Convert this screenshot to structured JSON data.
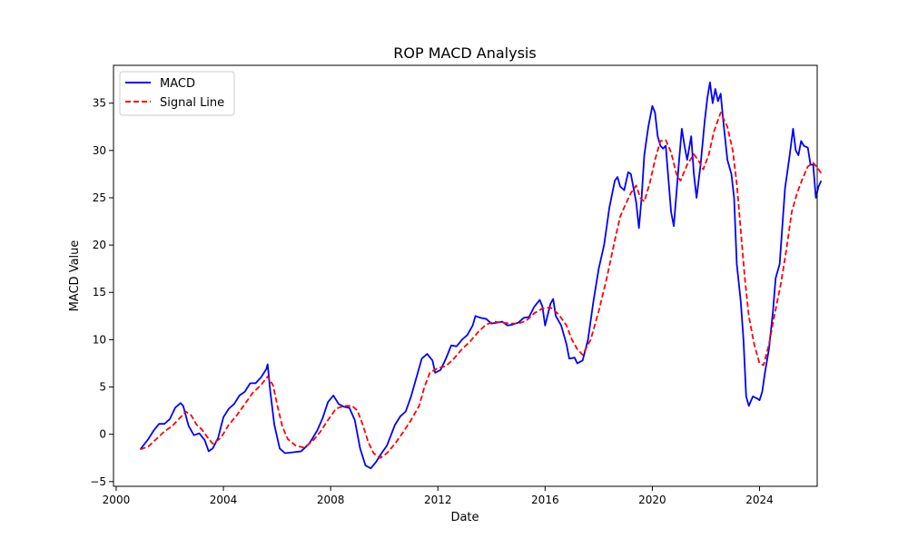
{
  "chart_data": {
    "type": "line",
    "title": "ROP MACD Analysis",
    "xlabel": "Date",
    "ylabel": "MACD Value",
    "xlim": [
      1999.9,
      2026.15
    ],
    "ylim": [
      -5.5,
      39.0
    ],
    "xticks": [
      2000,
      2004,
      2008,
      2012,
      2016,
      2020,
      2024
    ],
    "xtick_labels": [
      "2000",
      "2004",
      "2008",
      "2012",
      "2016",
      "2020",
      "2024"
    ],
    "yticks": [
      -5,
      0,
      5,
      10,
      15,
      20,
      25,
      30,
      35
    ],
    "ytick_labels": [
      "−5",
      "0",
      "5",
      "10",
      "15",
      "20",
      "25",
      "30",
      "35"
    ],
    "grid": false,
    "legend_position": "top-left",
    "series": [
      {
        "name": "MACD",
        "color": "#0000ff",
        "style": "solid",
        "points": [
          [
            2000.9,
            -1.6
          ],
          [
            2001.2,
            -0.5
          ],
          [
            2001.4,
            0.4
          ],
          [
            2001.6,
            1.1
          ],
          [
            2001.8,
            1.1
          ],
          [
            2002.0,
            1.6
          ],
          [
            2002.2,
            2.8
          ],
          [
            2002.4,
            3.3
          ],
          [
            2002.5,
            3.0
          ],
          [
            2002.7,
            0.9
          ],
          [
            2002.9,
            -0.1
          ],
          [
            2003.1,
            0.1
          ],
          [
            2003.3,
            -0.6
          ],
          [
            2003.45,
            -1.8
          ],
          [
            2003.6,
            -1.5
          ],
          [
            2003.8,
            -0.4
          ],
          [
            2004.0,
            1.8
          ],
          [
            2004.2,
            2.7
          ],
          [
            2004.4,
            3.2
          ],
          [
            2004.6,
            4.1
          ],
          [
            2004.8,
            4.5
          ],
          [
            2005.0,
            5.4
          ],
          [
            2005.2,
            5.4
          ],
          [
            2005.4,
            6.0
          ],
          [
            2005.6,
            6.9
          ],
          [
            2005.65,
            7.4
          ],
          [
            2005.75,
            4.5
          ],
          [
            2005.9,
            1.0
          ],
          [
            2006.1,
            -1.5
          ],
          [
            2006.3,
            -2.0
          ],
          [
            2006.6,
            -1.9
          ],
          [
            2006.9,
            -1.8
          ],
          [
            2007.2,
            -1.0
          ],
          [
            2007.5,
            0.4
          ],
          [
            2007.7,
            1.7
          ],
          [
            2007.9,
            3.4
          ],
          [
            2008.1,
            4.1
          ],
          [
            2008.3,
            3.2
          ],
          [
            2008.5,
            2.9
          ],
          [
            2008.7,
            2.8
          ],
          [
            2008.9,
            1.5
          ],
          [
            2009.1,
            -1.5
          ],
          [
            2009.3,
            -3.3
          ],
          [
            2009.5,
            -3.6
          ],
          [
            2009.7,
            -2.9
          ],
          [
            2009.9,
            -2.0
          ],
          [
            2010.1,
            -1.2
          ],
          [
            2010.4,
            1.0
          ],
          [
            2010.6,
            1.9
          ],
          [
            2010.8,
            2.4
          ],
          [
            2011.0,
            4.0
          ],
          [
            2011.2,
            6.0
          ],
          [
            2011.4,
            8.0
          ],
          [
            2011.6,
            8.5
          ],
          [
            2011.8,
            7.8
          ],
          [
            2011.9,
            6.5
          ],
          [
            2012.1,
            6.8
          ],
          [
            2012.3,
            8.0
          ],
          [
            2012.5,
            9.4
          ],
          [
            2012.7,
            9.3
          ],
          [
            2012.9,
            10.0
          ],
          [
            2013.1,
            10.5
          ],
          [
            2013.3,
            11.5
          ],
          [
            2013.4,
            12.5
          ],
          [
            2013.6,
            12.3
          ],
          [
            2013.8,
            12.2
          ],
          [
            2014.0,
            11.7
          ],
          [
            2014.2,
            11.8
          ],
          [
            2014.4,
            11.9
          ],
          [
            2014.6,
            11.5
          ],
          [
            2014.8,
            11.6
          ],
          [
            2015.0,
            11.8
          ],
          [
            2015.2,
            12.3
          ],
          [
            2015.4,
            12.4
          ],
          [
            2015.6,
            13.5
          ],
          [
            2015.8,
            14.2
          ],
          [
            2015.9,
            13.5
          ],
          [
            2016.0,
            11.5
          ],
          [
            2016.2,
            13.8
          ],
          [
            2016.3,
            14.3
          ],
          [
            2016.4,
            12.5
          ],
          [
            2016.6,
            11.5
          ],
          [
            2016.8,
            9.5
          ],
          [
            2016.9,
            8.0
          ],
          [
            2017.1,
            8.1
          ],
          [
            2017.2,
            7.5
          ],
          [
            2017.4,
            7.8
          ],
          [
            2017.6,
            10.0
          ],
          [
            2017.8,
            14.0
          ],
          [
            2018.0,
            17.5
          ],
          [
            2018.2,
            20.0
          ],
          [
            2018.4,
            24.0
          ],
          [
            2018.6,
            26.8
          ],
          [
            2018.7,
            27.2
          ],
          [
            2018.8,
            26.2
          ],
          [
            2018.95,
            25.8
          ],
          [
            2019.1,
            27.7
          ],
          [
            2019.2,
            27.5
          ],
          [
            2019.4,
            24.5
          ],
          [
            2019.5,
            21.8
          ],
          [
            2019.6,
            25.0
          ],
          [
            2019.7,
            29.5
          ],
          [
            2019.85,
            32.5
          ],
          [
            2020.0,
            34.7
          ],
          [
            2020.1,
            34.0
          ],
          [
            2020.2,
            31.5
          ],
          [
            2020.3,
            30.5
          ],
          [
            2020.4,
            30.2
          ],
          [
            2020.5,
            30.5
          ],
          [
            2020.6,
            27.0
          ],
          [
            2020.7,
            23.5
          ],
          [
            2020.8,
            22.0
          ],
          [
            2020.9,
            25.5
          ],
          [
            2021.0,
            29.0
          ],
          [
            2021.1,
            32.3
          ],
          [
            2021.2,
            30.5
          ],
          [
            2021.3,
            29.0
          ],
          [
            2021.45,
            31.5
          ],
          [
            2021.55,
            27.5
          ],
          [
            2021.65,
            25.0
          ],
          [
            2021.8,
            28.5
          ],
          [
            2021.95,
            33.0
          ],
          [
            2022.05,
            35.5
          ],
          [
            2022.15,
            37.2
          ],
          [
            2022.25,
            35.0
          ],
          [
            2022.35,
            36.5
          ],
          [
            2022.45,
            35.2
          ],
          [
            2022.55,
            36.0
          ],
          [
            2022.65,
            33.0
          ],
          [
            2022.8,
            29.0
          ],
          [
            2022.95,
            27.5
          ],
          [
            2023.05,
            25.0
          ],
          [
            2023.15,
            18.0
          ],
          [
            2023.3,
            14.0
          ],
          [
            2023.4,
            10.0
          ],
          [
            2023.5,
            4.0
          ],
          [
            2023.6,
            3.0
          ],
          [
            2023.75,
            4.0
          ],
          [
            2023.9,
            3.8
          ],
          [
            2024.0,
            3.6
          ],
          [
            2024.1,
            4.5
          ],
          [
            2024.2,
            6.5
          ],
          [
            2024.35,
            9.0
          ],
          [
            2024.5,
            13.0
          ],
          [
            2024.6,
            16.5
          ],
          [
            2024.75,
            18.0
          ],
          [
            2024.85,
            22.0
          ],
          [
            2024.95,
            26.0
          ],
          [
            2025.1,
            29.0
          ],
          [
            2025.25,
            32.3
          ],
          [
            2025.35,
            30.0
          ],
          [
            2025.45,
            29.5
          ],
          [
            2025.55,
            31.0
          ],
          [
            2025.65,
            30.5
          ],
          [
            2025.8,
            30.3
          ],
          [
            2025.9,
            28.5
          ],
          [
            2026.0,
            28.5
          ],
          [
            2026.1,
            25.0
          ],
          [
            2026.2,
            26.2
          ],
          [
            2026.3,
            26.8
          ]
        ]
      },
      {
        "name": "Signal Line",
        "color": "#ff0000",
        "style": "dashed",
        "points": [
          [
            2000.9,
            -1.6
          ],
          [
            2001.2,
            -1.3
          ],
          [
            2001.5,
            -0.5
          ],
          [
            2001.8,
            0.3
          ],
          [
            2002.1,
            0.9
          ],
          [
            2002.4,
            1.8
          ],
          [
            2002.6,
            2.4
          ],
          [
            2002.8,
            2.0
          ],
          [
            2003.0,
            1.0
          ],
          [
            2003.2,
            0.5
          ],
          [
            2003.4,
            -0.3
          ],
          [
            2003.6,
            -1.0
          ],
          [
            2003.9,
            -0.4
          ],
          [
            2004.2,
            1.0
          ],
          [
            2004.5,
            2.0
          ],
          [
            2004.8,
            3.2
          ],
          [
            2005.1,
            4.4
          ],
          [
            2005.4,
            5.2
          ],
          [
            2005.65,
            6.1
          ],
          [
            2005.85,
            5.2
          ],
          [
            2006.0,
            3.2
          ],
          [
            2006.2,
            0.8
          ],
          [
            2006.4,
            -0.5
          ],
          [
            2006.7,
            -1.2
          ],
          [
            2007.0,
            -1.4
          ],
          [
            2007.3,
            -0.8
          ],
          [
            2007.6,
            0.2
          ],
          [
            2007.9,
            1.5
          ],
          [
            2008.2,
            2.7
          ],
          [
            2008.5,
            3.0
          ],
          [
            2008.8,
            3.0
          ],
          [
            2009.0,
            2.5
          ],
          [
            2009.2,
            1.0
          ],
          [
            2009.4,
            -0.8
          ],
          [
            2009.6,
            -2.0
          ],
          [
            2009.85,
            -2.5
          ],
          [
            2010.1,
            -2.0
          ],
          [
            2010.4,
            -1.0
          ],
          [
            2010.7,
            0.2
          ],
          [
            2011.0,
            1.5
          ],
          [
            2011.3,
            3.0
          ],
          [
            2011.5,
            5.0
          ],
          [
            2011.7,
            6.5
          ],
          [
            2012.0,
            7.0
          ],
          [
            2012.3,
            7.2
          ],
          [
            2012.6,
            8.0
          ],
          [
            2012.9,
            9.0
          ],
          [
            2013.2,
            9.8
          ],
          [
            2013.5,
            10.8
          ],
          [
            2013.8,
            11.6
          ],
          [
            2014.1,
            11.9
          ],
          [
            2014.4,
            11.8
          ],
          [
            2014.7,
            11.7
          ],
          [
            2015.0,
            11.7
          ],
          [
            2015.3,
            12.0
          ],
          [
            2015.6,
            12.8
          ],
          [
            2015.9,
            13.3
          ],
          [
            2016.2,
            13.4
          ],
          [
            2016.5,
            12.7
          ],
          [
            2016.8,
            11.5
          ],
          [
            2017.0,
            10.0
          ],
          [
            2017.2,
            9.0
          ],
          [
            2017.4,
            8.4
          ],
          [
            2017.7,
            10.0
          ],
          [
            2018.0,
            13.0
          ],
          [
            2018.3,
            16.5
          ],
          [
            2018.6,
            20.5
          ],
          [
            2018.8,
            23.0
          ],
          [
            2019.0,
            24.3
          ],
          [
            2019.2,
            25.5
          ],
          [
            2019.4,
            26.3
          ],
          [
            2019.55,
            25.0
          ],
          [
            2019.7,
            24.6
          ],
          [
            2019.9,
            26.5
          ],
          [
            2020.1,
            29.0
          ],
          [
            2020.3,
            31.0
          ],
          [
            2020.5,
            31.1
          ],
          [
            2020.7,
            29.8
          ],
          [
            2020.9,
            27.5
          ],
          [
            2021.05,
            26.8
          ],
          [
            2021.3,
            28.5
          ],
          [
            2021.55,
            29.6
          ],
          [
            2021.75,
            28.8
          ],
          [
            2021.9,
            28.0
          ],
          [
            2022.1,
            29.5
          ],
          [
            2022.3,
            32.0
          ],
          [
            2022.55,
            34.0
          ],
          [
            2022.8,
            32.5
          ],
          [
            2023.0,
            30.0
          ],
          [
            2023.15,
            26.5
          ],
          [
            2023.3,
            21.5
          ],
          [
            2023.45,
            16.5
          ],
          [
            2023.6,
            12.5
          ],
          [
            2023.8,
            9.5
          ],
          [
            2024.0,
            7.5
          ],
          [
            2024.15,
            7.3
          ],
          [
            2024.35,
            9.5
          ],
          [
            2024.55,
            12.5
          ],
          [
            2024.8,
            16.0
          ],
          [
            2025.0,
            19.5
          ],
          [
            2025.2,
            23.5
          ],
          [
            2025.4,
            25.5
          ],
          [
            2025.6,
            27.0
          ],
          [
            2025.8,
            28.3
          ],
          [
            2026.0,
            28.7
          ],
          [
            2026.15,
            28.2
          ],
          [
            2026.3,
            27.6
          ]
        ]
      }
    ]
  }
}
